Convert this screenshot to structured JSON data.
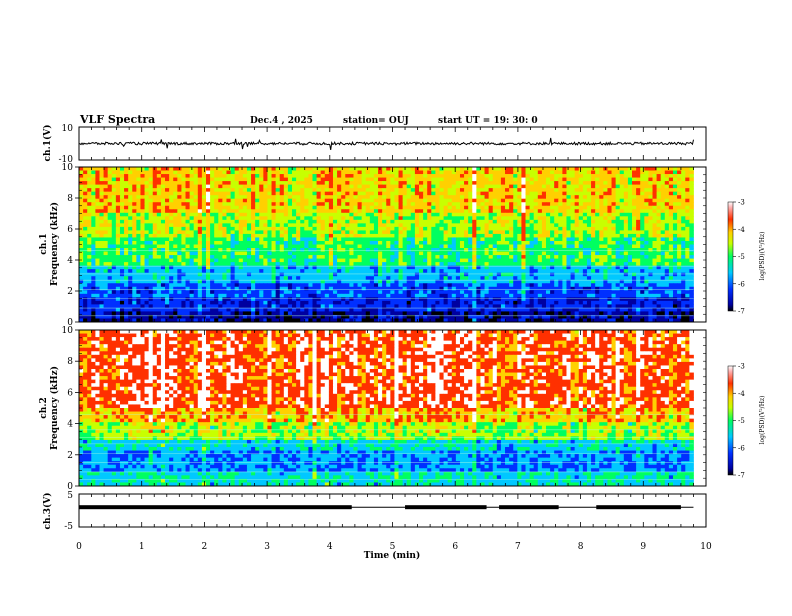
{
  "header": {
    "title": "VLF Spectra",
    "date": "Dec.4 , 2025",
    "station": "station= OUJ",
    "start_ut": "start UT =   19: 30: 0"
  },
  "chart_data": {
    "type": "heatmap",
    "x_axis": {
      "label": "Time (min)",
      "range": [
        0,
        10
      ],
      "ticks": [
        "0",
        "1",
        "2",
        "3",
        "4",
        "5",
        "6",
        "7",
        "8",
        "9",
        "10"
      ]
    },
    "panels": [
      {
        "id": "ch1_waveform",
        "type": "line",
        "ylabel": "ch.1(V)",
        "ylim": [
          -10,
          10
        ],
        "yticks": [
          "10",
          "-10"
        ],
        "data_end_min": 9.8,
        "baseline": 0
      },
      {
        "id": "ch1_spectrogram",
        "type": "heatmap",
        "ylabel_top": "ch.1",
        "ylabel": "Frequency (kHz)",
        "ylim": [
          0,
          10
        ],
        "yticks": [
          "0",
          "2",
          "4",
          "6",
          "8",
          "10"
        ],
        "data_end_min": 9.8,
        "colorbar": {
          "label": "log(PSD)(V²/Hz)",
          "range": [
            -7,
            -3
          ],
          "ticks": [
            "-3",
            "-4",
            "-5",
            "-6",
            "-7"
          ]
        }
      },
      {
        "id": "ch2_spectrogram",
        "type": "heatmap",
        "ylabel_top": "ch.2",
        "ylabel": "Frequency (kHz)",
        "ylim": [
          0,
          10
        ],
        "yticks": [
          "0",
          "2",
          "4",
          "6",
          "8",
          "10"
        ],
        "data_end_min": 9.8,
        "colorbar": {
          "label": "log(PSD)(V²/Hz)",
          "range": [
            -7,
            -3
          ],
          "ticks": [
            "-3",
            "-4",
            "-5",
            "-6",
            "-7"
          ]
        }
      },
      {
        "id": "ch3_signal",
        "type": "line",
        "ylabel": "ch.3(V)",
        "ylim": [
          -5,
          5
        ],
        "yticks": [
          "5",
          "0",
          "-5"
        ],
        "level_high": 0.3,
        "level_low": 1.0,
        "segments_high": [
          [
            0,
            4.35
          ],
          [
            5.2,
            6.5
          ],
          [
            6.7,
            7.65
          ],
          [
            8.25,
            9.6
          ]
        ]
      }
    ]
  },
  "colors": {
    "colormap": [
      "#000000",
      "#0000a0",
      "#0030ff",
      "#00c8ff",
      "#00ff60",
      "#c8ff00",
      "#ffd000",
      "#ff3000",
      "#ffffff"
    ]
  }
}
